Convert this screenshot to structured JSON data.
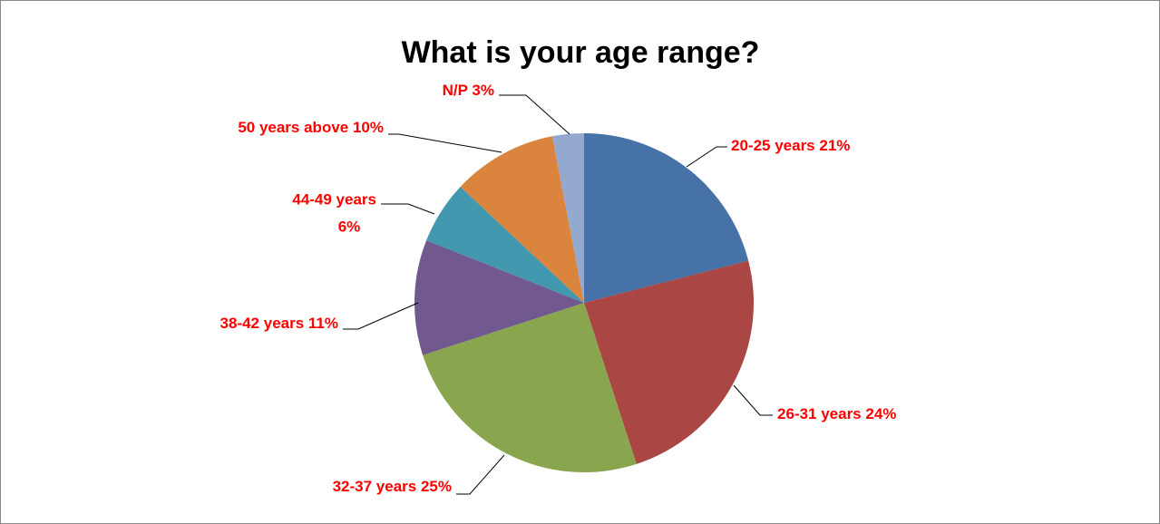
{
  "chart_data": {
    "type": "pie",
    "title": "What is your age range?",
    "categories": [
      "20-25 years",
      "26-31 years",
      "32-37 years",
      "38-42 years",
      "44-49 years",
      "50 years above",
      "N/P"
    ],
    "values": [
      21,
      24,
      25,
      11,
      6,
      10,
      3
    ],
    "value_labels": [
      "21%",
      "24%",
      "25%",
      "11%",
      "6%",
      "10%",
      "3%"
    ],
    "colors": [
      "#4672a8",
      "#aa4644",
      "#89a64e",
      "#71598f",
      "#4298af",
      "#db843d",
      "#93a9cf"
    ],
    "label_color": "#ff0000"
  }
}
